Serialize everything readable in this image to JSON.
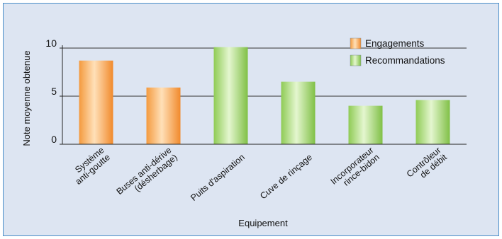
{
  "chart_data": {
    "type": "bar",
    "categories": [
      [
        "Système",
        "anti-goutte"
      ],
      [
        "Buses anti-dérive",
        "(désherbage)"
      ],
      [
        "Puits d'aspiration"
      ],
      [
        "Cuve de rinçage"
      ],
      [
        "Incorporateur",
        "rince-bidon"
      ],
      [
        "Contrôleur",
        "de débit"
      ]
    ],
    "values": [
      8.7,
      5.9,
      10.1,
      6.5,
      4.0,
      4.6
    ],
    "series_index": [
      0,
      0,
      1,
      1,
      1,
      1
    ],
    "series": [
      {
        "name": "Engagements",
        "color": "#f7a04a"
      },
      {
        "name": "Recommandations",
        "color": "#9fd36a"
      }
    ],
    "xlabel": "Equipement",
    "ylabel": "Note moyenne obtenue",
    "ylim": [
      0,
      10
    ],
    "yticks": [
      0,
      5,
      10
    ],
    "grid": true,
    "legend_position": "top-right",
    "background_color": "#dde5f2",
    "border_color": "#4a8ec9"
  }
}
